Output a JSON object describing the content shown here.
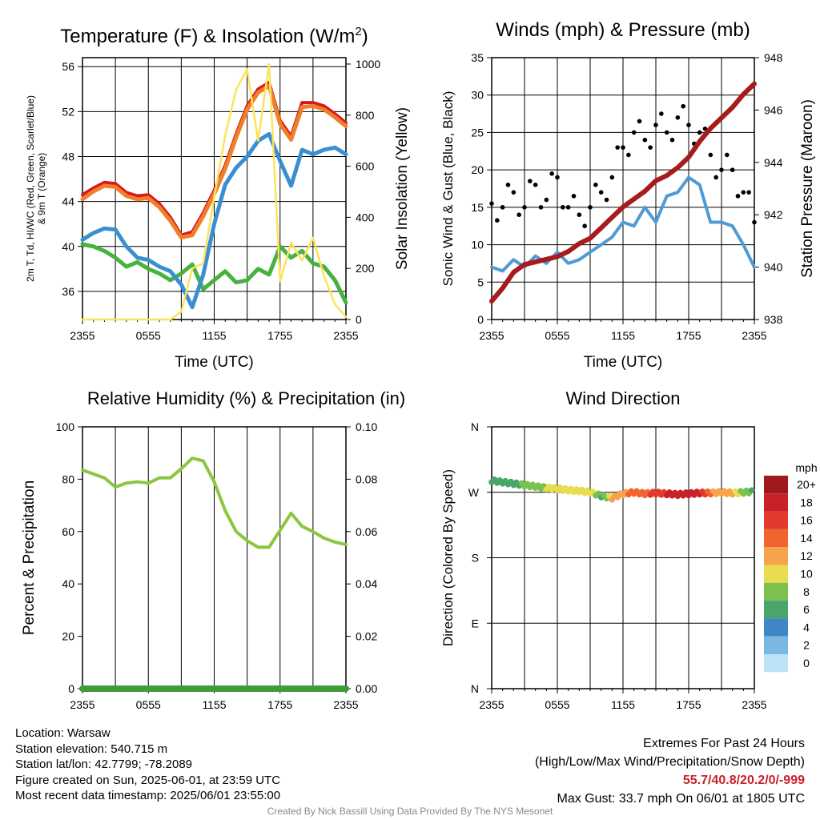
{
  "chart_data": [
    {
      "type": "line",
      "title": "Temperature (F) & Insolation (W/m²)",
      "title_main": "Temperature (F) & Insolation (W/m",
      "title_sup": "2",
      "title_end": ")",
      "xlabel": "Time (UTC)",
      "ylabel_line1": "2m T, Td, HI/WC (Red, Green, Scarlet/Blue)",
      "ylabel_line2": "& 9m T (Orange)",
      "y2label": "Solar Insolation (Yellow)",
      "x_ticks": [
        "2355",
        "0555",
        "1155",
        "1755",
        "2355"
      ],
      "y_ticks": [
        36,
        40,
        44,
        48,
        52,
        56
      ],
      "ylim": [
        33.5,
        56.8
      ],
      "y2_ticks": [
        0,
        200,
        400,
        600,
        800,
        1000
      ],
      "y2lim": [
        0,
        1025
      ],
      "x_hours": [
        0,
        1,
        2,
        3,
        4,
        5,
        6,
        7,
        8,
        9,
        10,
        11,
        12,
        13,
        14,
        15,
        16,
        17,
        18,
        19,
        20,
        21,
        22,
        23,
        24
      ],
      "series": [
        {
          "name": "2m T",
          "color": "#d7191c",
          "values": [
            44.6,
            45.2,
            45.7,
            45.6,
            44.8,
            44.5,
            44.6,
            43.8,
            42.6,
            41.0,
            41.3,
            43.0,
            45.0,
            47.2,
            50.0,
            52.5,
            54.0,
            54.6,
            51.2,
            49.8,
            52.8,
            52.8,
            52.5,
            51.8,
            51.0
          ]
        },
        {
          "name": "9m T",
          "color": "#f07f2a",
          "values": [
            44.2,
            44.9,
            45.4,
            45.3,
            44.5,
            44.2,
            44.3,
            43.5,
            42.3,
            40.8,
            41.0,
            42.7,
            44.7,
            46.9,
            49.7,
            52.2,
            53.7,
            54.3,
            50.9,
            49.5,
            52.4,
            52.5,
            52.2,
            51.5,
            50.7
          ]
        },
        {
          "name": "Td",
          "color": "#47b23e",
          "values": [
            40.2,
            40.0,
            39.6,
            39.0,
            38.2,
            38.6,
            38.0,
            37.6,
            37.0,
            37.6,
            38.4,
            36.2,
            37.0,
            37.8,
            36.8,
            37.0,
            38.0,
            37.5,
            40.0,
            39.0,
            39.6,
            38.5,
            38.2,
            37.0,
            35.0
          ]
        },
        {
          "name": "HI/WC",
          "color": "#3a8fd1",
          "values": [
            40.6,
            41.2,
            41.6,
            41.5,
            40.0,
            39.0,
            38.8,
            38.2,
            37.8,
            36.6,
            34.6,
            37.5,
            42.0,
            45.5,
            47.0,
            48.0,
            49.4,
            50.0,
            47.6,
            45.4,
            48.6,
            48.2,
            48.6,
            48.8,
            48.2
          ]
        },
        {
          "name": "Insolation",
          "color": "#fde35c",
          "axis": "right",
          "values": [
            0,
            0,
            0,
            0,
            0,
            0,
            0,
            0,
            0,
            30,
            200,
            220,
            480,
            720,
            900,
            980,
            700,
            1000,
            150,
            300,
            230,
            320,
            170,
            60,
            10
          ]
        }
      ]
    },
    {
      "type": "line",
      "title": "Winds (mph) & Pressure (mb)",
      "xlabel": "Time (UTC)",
      "ylabel": "Sonic Wind & Gust (Blue, Black)",
      "y2label": "Station Pressure (Maroon)",
      "x_ticks": [
        "2355",
        "0555",
        "1155",
        "1755",
        "2355"
      ],
      "y_ticks": [
        0,
        5,
        10,
        15,
        20,
        25,
        30,
        35
      ],
      "ylim": [
        0,
        35
      ],
      "y2_ticks": [
        938,
        940,
        942,
        944,
        946,
        948
      ],
      "y2lim": [
        938,
        948
      ],
      "x_hours": [
        0,
        1,
        2,
        3,
        4,
        5,
        6,
        7,
        8,
        9,
        10,
        11,
        12,
        13,
        14,
        15,
        16,
        17,
        18,
        19,
        20,
        21,
        22,
        23,
        24
      ],
      "series": [
        {
          "name": "Sonic Wind",
          "color": "#4f9bd6",
          "values": [
            7.0,
            6.5,
            8.0,
            7.0,
            8.5,
            7.5,
            9.0,
            7.5,
            8.0,
            9.0,
            10.0,
            11.0,
            13.0,
            12.5,
            15.0,
            13.0,
            16.5,
            17.0,
            19.0,
            18.0,
            13.0,
            13.0,
            12.5,
            10.0,
            7.0
          ]
        },
        {
          "name": "Gust",
          "color": "#000000",
          "values": [
            15.5,
            15.0,
            17.0,
            15.0,
            18.0,
            16.0,
            19.0,
            15.0,
            14.0,
            15.0,
            17.0,
            19.0,
            23.0,
            25.0,
            24.0,
            26.0,
            25.0,
            27.0,
            26.0,
            25.0,
            22.0,
            20.0,
            20.0,
            17.0,
            13.0
          ]
        },
        {
          "name": "Pressure",
          "color": "#a61b1b",
          "axis": "right",
          "values": [
            938.7,
            939.2,
            939.8,
            940.1,
            940.2,
            940.3,
            940.4,
            940.6,
            940.9,
            941.1,
            941.5,
            941.9,
            942.3,
            942.6,
            942.9,
            943.3,
            943.5,
            943.8,
            944.2,
            944.8,
            945.3,
            945.7,
            946.1,
            946.6,
            947.0
          ]
        }
      ]
    },
    {
      "type": "line",
      "title": "Relative Humidity (%) & Precipitation (in)",
      "ylabel": "Percent & Precipitation",
      "x_ticks": [
        "2355",
        "0555",
        "1155",
        "1755",
        "2355"
      ],
      "y_ticks": [
        0,
        20,
        40,
        60,
        80,
        100
      ],
      "ylim": [
        0,
        100
      ],
      "y2_ticks": [
        "0.00",
        "0.02",
        "0.04",
        "0.06",
        "0.08",
        "0.10"
      ],
      "y2lim": [
        0,
        0.1
      ],
      "x_hours": [
        0,
        1,
        2,
        3,
        4,
        5,
        6,
        7,
        8,
        9,
        10,
        11,
        12,
        13,
        14,
        15,
        16,
        17,
        18,
        19,
        20,
        21,
        22,
        23,
        24
      ],
      "series": [
        {
          "name": "Relative Humidity",
          "color": "#8cc63f",
          "values": [
            83.5,
            82.0,
            80.5,
            77.0,
            78.5,
            79.0,
            78.5,
            80.5,
            80.5,
            84.0,
            88.0,
            87.0,
            79.0,
            68.0,
            60.0,
            56.5,
            54.0,
            54.0,
            60.5,
            67.0,
            62.0,
            60.0,
            57.5,
            56.0,
            55.0
          ]
        },
        {
          "name": "Precipitation",
          "color": "#3f9c3a",
          "axis": "right",
          "values": [
            0,
            0,
            0,
            0,
            0,
            0,
            0,
            0,
            0,
            0,
            0,
            0,
            0,
            0,
            0,
            0,
            0,
            0,
            0,
            0,
            0,
            0,
            0,
            0,
            0
          ]
        }
      ]
    },
    {
      "type": "scatter",
      "title": "Wind Direction",
      "ylabel": "Direction (Colored By Speed)",
      "x_ticks": [
        "2355",
        "0555",
        "1155",
        "1755",
        "2355"
      ],
      "y_ticks": [
        "N",
        "E",
        "S",
        "W",
        "N"
      ],
      "ylim": [
        0,
        360
      ],
      "x_hours": [
        0,
        1,
        2,
        3,
        4,
        5,
        6,
        7,
        8,
        9,
        10,
        11,
        12,
        13,
        14,
        15,
        16,
        17,
        18,
        19,
        20,
        21,
        22,
        23,
        24
      ],
      "direction_deg": [
        286,
        284,
        282,
        280,
        278,
        276,
        275,
        273,
        272,
        270,
        265,
        262,
        268,
        270,
        268,
        269,
        268,
        267,
        268,
        269,
        269,
        270,
        269,
        270,
        271
      ],
      "speed_mph": [
        7,
        6,
        6,
        9,
        9,
        10,
        10,
        11,
        10,
        11,
        7,
        12,
        13,
        15,
        15,
        17,
        18,
        18,
        19,
        18,
        14,
        13,
        12,
        9,
        7
      ],
      "colorbar": {
        "unit": "mph",
        "labels": [
          "20+",
          "18",
          "16",
          "14",
          "12",
          "10",
          "8",
          "6",
          "4",
          "2",
          "0"
        ],
        "colors": [
          "#9e1a1e",
          "#c82127",
          "#e23b2d",
          "#f0642f",
          "#f7a34c",
          "#e8dc4f",
          "#7cc150",
          "#4aa56b",
          "#3f87c4",
          "#7ab8e3",
          "#bde3f6"
        ]
      }
    }
  ],
  "info": {
    "location": "Location: Warsaw",
    "elevation": "Station elevation: 540.715 m",
    "latlon": "Station lat/lon: 42.7799; -78.2089",
    "created": "Figure created on Sun, 2025-06-01, at 23:59 UTC",
    "recent": "Most recent data timestamp: 2025/06/01 23:55:00"
  },
  "extremes": {
    "title": "Extremes For Past 24 Hours",
    "subtitle": "(High/Low/Max Wind/Precipitation/Snow Depth)",
    "values": "55.7/40.8/20.2/0/-999",
    "gust": "Max Gust: 33.7 mph On 06/01 at 1805 UTC"
  },
  "credit": "Created By Nick Bassill Using Data Provided By The NYS Mesonet"
}
